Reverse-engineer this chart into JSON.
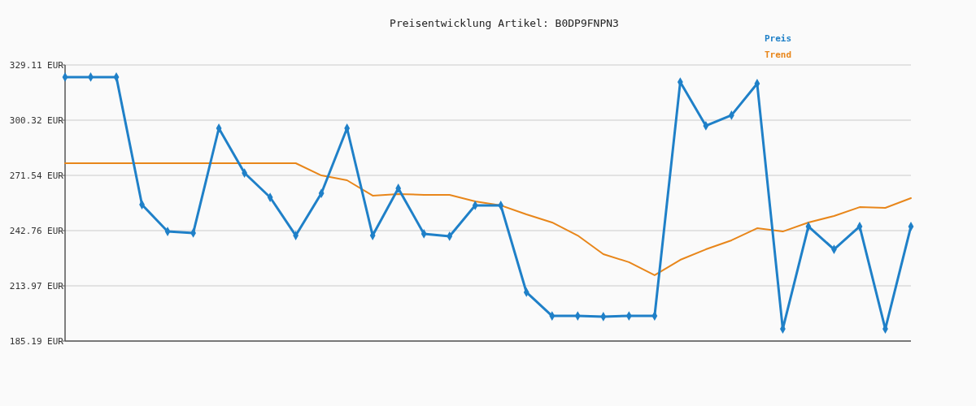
{
  "chart_data": {
    "type": "line",
    "title": "Preisentwicklung Artikel: B0DP9FNPN3",
    "categories": [
      null,
      null,
      null,
      null,
      null,
      null,
      null,
      null,
      null,
      null,
      null,
      null,
      null,
      null,
      null,
      null,
      null,
      null,
      null,
      null,
      null,
      null,
      null,
      null,
      null,
      null,
      null,
      null,
      null,
      null,
      null,
      null,
      null,
      null
    ],
    "series": [
      {
        "name": "Preis",
        "color": "#1f80c8",
        "marker": "diamond",
        "values": [
          322.8,
          322.8,
          322.8,
          256.3,
          242.3,
          241.5,
          296.1,
          272.8,
          260.1,
          240.2,
          262.2,
          296.1,
          240.2,
          264.8,
          241.1,
          239.8,
          255.9,
          255.9,
          210.6,
          198.3,
          198.3,
          197.9,
          198.3,
          198.3,
          320.2,
          297.4,
          302.9,
          319.4,
          191.5,
          244.9,
          233.0,
          244.9,
          191.5,
          244.9
        ]
      },
      {
        "name": "Trend",
        "color": "#e8861a",
        "marker": "none",
        "values": [
          277.9,
          277.9,
          277.9,
          277.9,
          277.9,
          277.9,
          277.9,
          277.9,
          277.9,
          277.9,
          271.5,
          269.0,
          261.0,
          261.8,
          261.4,
          261.4,
          258.0,
          255.9,
          251.2,
          247.0,
          240.2,
          230.5,
          226.3,
          219.5,
          227.5,
          233.0,
          237.7,
          244.0,
          242.3,
          247.0,
          250.4,
          255.0,
          254.6,
          259.7
        ]
      }
    ],
    "ylim": [
      185.19,
      329.11
    ],
    "yticks": [
      {
        "value": 185.19,
        "label": "185.19 EUR"
      },
      {
        "value": 213.97,
        "label": "213.97 EUR"
      },
      {
        "value": 242.76,
        "label": "242.76 EUR"
      },
      {
        "value": 271.54,
        "label": "271.54 EUR"
      },
      {
        "value": 300.32,
        "label": "300.32 EUR"
      },
      {
        "value": 329.11,
        "label": "329.11 EUR"
      }
    ],
    "grid": "y",
    "legend": "top right",
    "tick_labels": "y",
    "line_style": "solid"
  }
}
